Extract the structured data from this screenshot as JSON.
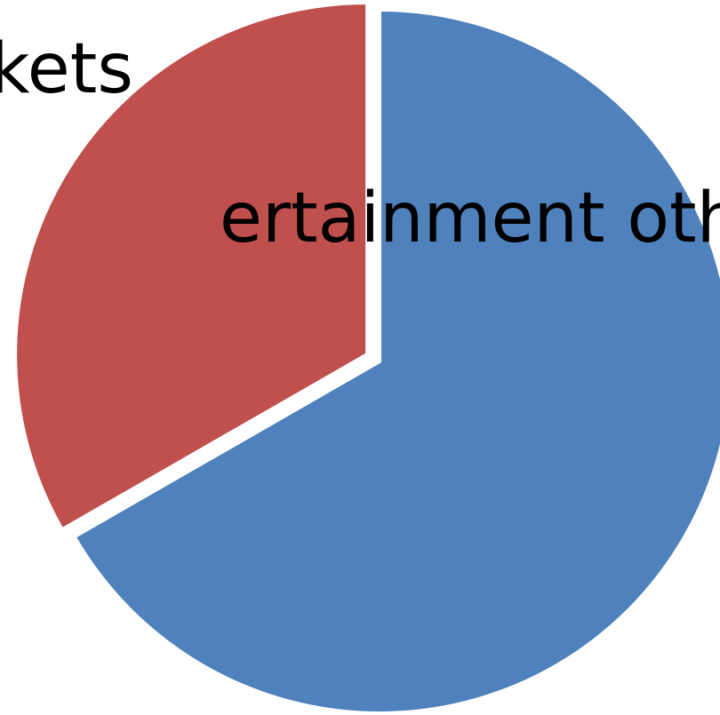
{
  "chart_data": {
    "type": "pie",
    "title": "",
    "slices": [
      {
        "label": "",
        "value": 66.7,
        "color": "#4F81BD"
      },
      {
        "label": "",
        "value": 33.3,
        "color": "#C0504D"
      }
    ],
    "exploded": true,
    "legend": "none"
  },
  "labels": {
    "first_line": "kets",
    "second_line": "ertainment other tha"
  }
}
